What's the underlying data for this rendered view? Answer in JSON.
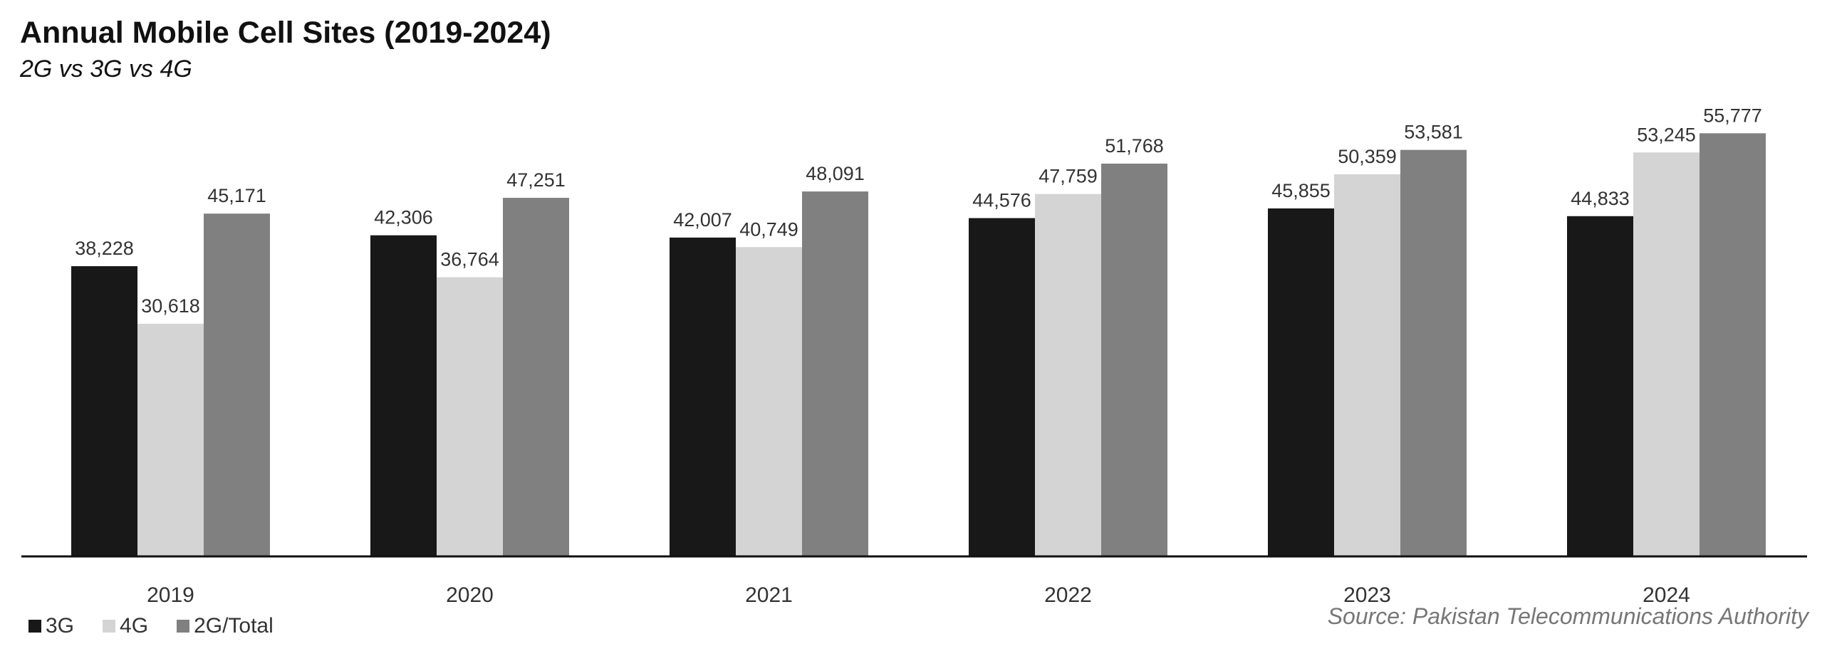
{
  "chart_data": {
    "type": "bar",
    "title": "Annual Mobile Cell Sites (2019-2024)",
    "subtitle": "2G vs 3G vs 4G",
    "categories": [
      "2019",
      "2020",
      "2021",
      "2022",
      "2023",
      "2024"
    ],
    "series": [
      {
        "name": "3G",
        "color": "#181818",
        "values": [
          38228,
          42306,
          42007,
          44576,
          45855,
          44833
        ]
      },
      {
        "name": "4G",
        "color": "#d4d4d4",
        "values": [
          30618,
          36764,
          40749,
          47759,
          50359,
          53245
        ]
      },
      {
        "name": "2G/Total",
        "color": "#808080",
        "values": [
          45171,
          47251,
          48091,
          51768,
          53581,
          55777
        ]
      }
    ],
    "ylim": [
      0,
      59000
    ],
    "grid": false,
    "legend_position": "bottom-left",
    "source": "Source: Pakistan Telecommunications Authority"
  }
}
